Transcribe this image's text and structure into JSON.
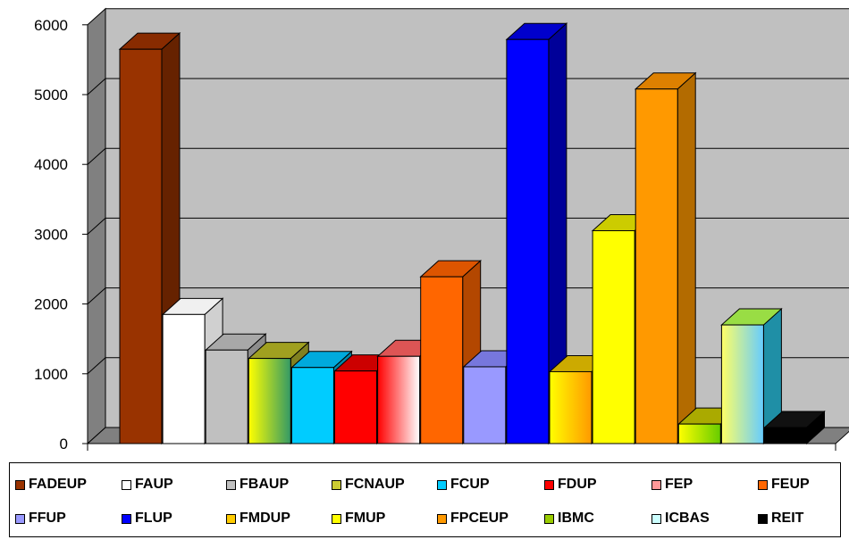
{
  "chart_data": {
    "type": "bar",
    "title": "",
    "xlabel": "",
    "ylabel": "",
    "ylim": [
      0,
      6000
    ],
    "yticks": [
      0,
      1000,
      2000,
      3000,
      4000,
      5000,
      6000
    ],
    "grid": true,
    "legend_position": "bottom",
    "categories": [
      "FADEUP",
      "FAUP",
      "FBAUP",
      "FCNAUP",
      "FCUP",
      "FDUP",
      "FEP",
      "FEUP",
      "FFUP",
      "FLUP",
      "FMDUP",
      "FMUP",
      "FPCEUP",
      "IBMC",
      "ICBAS",
      "REIT"
    ],
    "series": [
      {
        "name": "FADEUP",
        "value": 5650,
        "color": "#993300",
        "side": "#662200",
        "top": "#882b00"
      },
      {
        "name": "FAUP",
        "value": 1850,
        "color": "#ffffff",
        "side": "#d0d0d0",
        "top": "#f0f0f0"
      },
      {
        "name": "FBAUP",
        "value": 1340,
        "color": "#c0c0c0",
        "side": "#8c8c8c",
        "top": "#a8a8a8"
      },
      {
        "name": "FCNAUP",
        "value": 1220,
        "color": "#cccc33",
        "side": "#808020",
        "top": "#a0a020"
      },
      {
        "name": "FCUP",
        "value": 1090,
        "color": "#00ccff",
        "side": "#0088aa",
        "top": "#00aadd"
      },
      {
        "name": "FDUP",
        "value": 1040,
        "color": "#ff0000",
        "side": "#aa0000",
        "top": "#cc0000"
      },
      {
        "name": "FEP",
        "value": 1250,
        "color": "#ff9999",
        "side": "#cc3333",
        "top": "#dd5555"
      },
      {
        "name": "FEUP",
        "value": 2390,
        "color": "#ff6600",
        "side": "#b34700",
        "top": "#dd5500"
      },
      {
        "name": "FFUP",
        "value": 1100,
        "color": "#9999ff",
        "side": "#6666cc",
        "top": "#7777dd"
      },
      {
        "name": "FLUP",
        "value": 5790,
        "color": "#0000ff",
        "side": "#000099",
        "top": "#0000cc"
      },
      {
        "name": "FMDUP",
        "value": 1030,
        "color": "#ffcc00",
        "side": "#b38f00",
        "top": "#ccaa00"
      },
      {
        "name": "FMUP",
        "value": 3050,
        "color": "#ffff00",
        "side": "#b3b300",
        "top": "#cccc00"
      },
      {
        "name": "FPCEUP",
        "value": 5080,
        "color": "#ff9900",
        "side": "#b36b00",
        "top": "#dd8000"
      },
      {
        "name": "IBMC",
        "value": 280,
        "color": "#99cc00",
        "side": "#668800",
        "top": "#aaaa00"
      },
      {
        "name": "ICBAS",
        "value": 1700,
        "color": "#ccffff",
        "side": "#1f8fa6",
        "top": "#99dd44"
      },
      {
        "name": "REIT",
        "value": 230,
        "color": "#000000",
        "side": "#000000",
        "top": "#111111"
      }
    ]
  }
}
